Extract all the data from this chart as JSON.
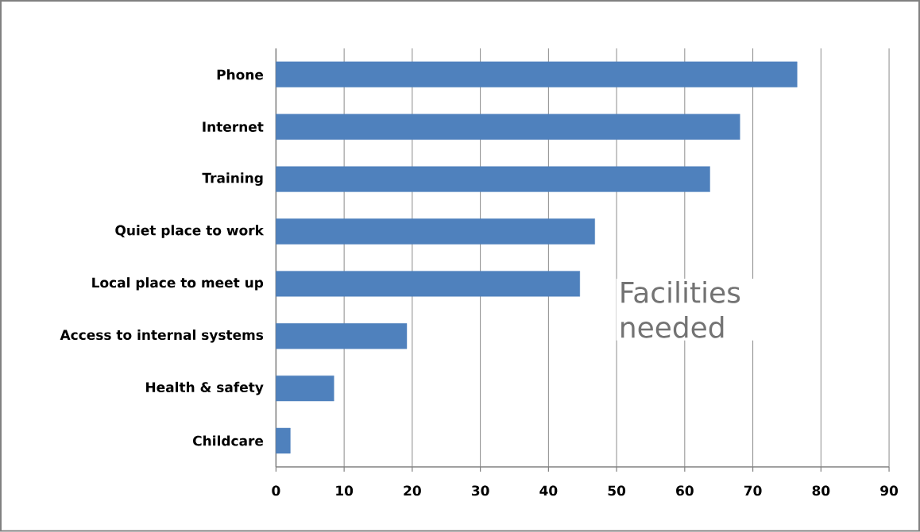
{
  "chart_data": {
    "type": "bar",
    "orientation": "horizontal",
    "categories": [
      "Phone",
      "Internet",
      "Training",
      "Quiet place to work",
      "Local place to meet up",
      "Access to internal systems",
      "Health & safety",
      "Childcare"
    ],
    "values": [
      76.5,
      68.1,
      63.7,
      46.8,
      44.6,
      19.2,
      8.5,
      2.1
    ],
    "color": "#4f81bd",
    "xlim": [
      0,
      90
    ],
    "xticks": [
      0,
      10,
      20,
      30,
      40,
      50,
      60,
      70,
      80,
      90
    ],
    "grid": "x",
    "annotations": [
      "Facilities needed"
    ]
  }
}
